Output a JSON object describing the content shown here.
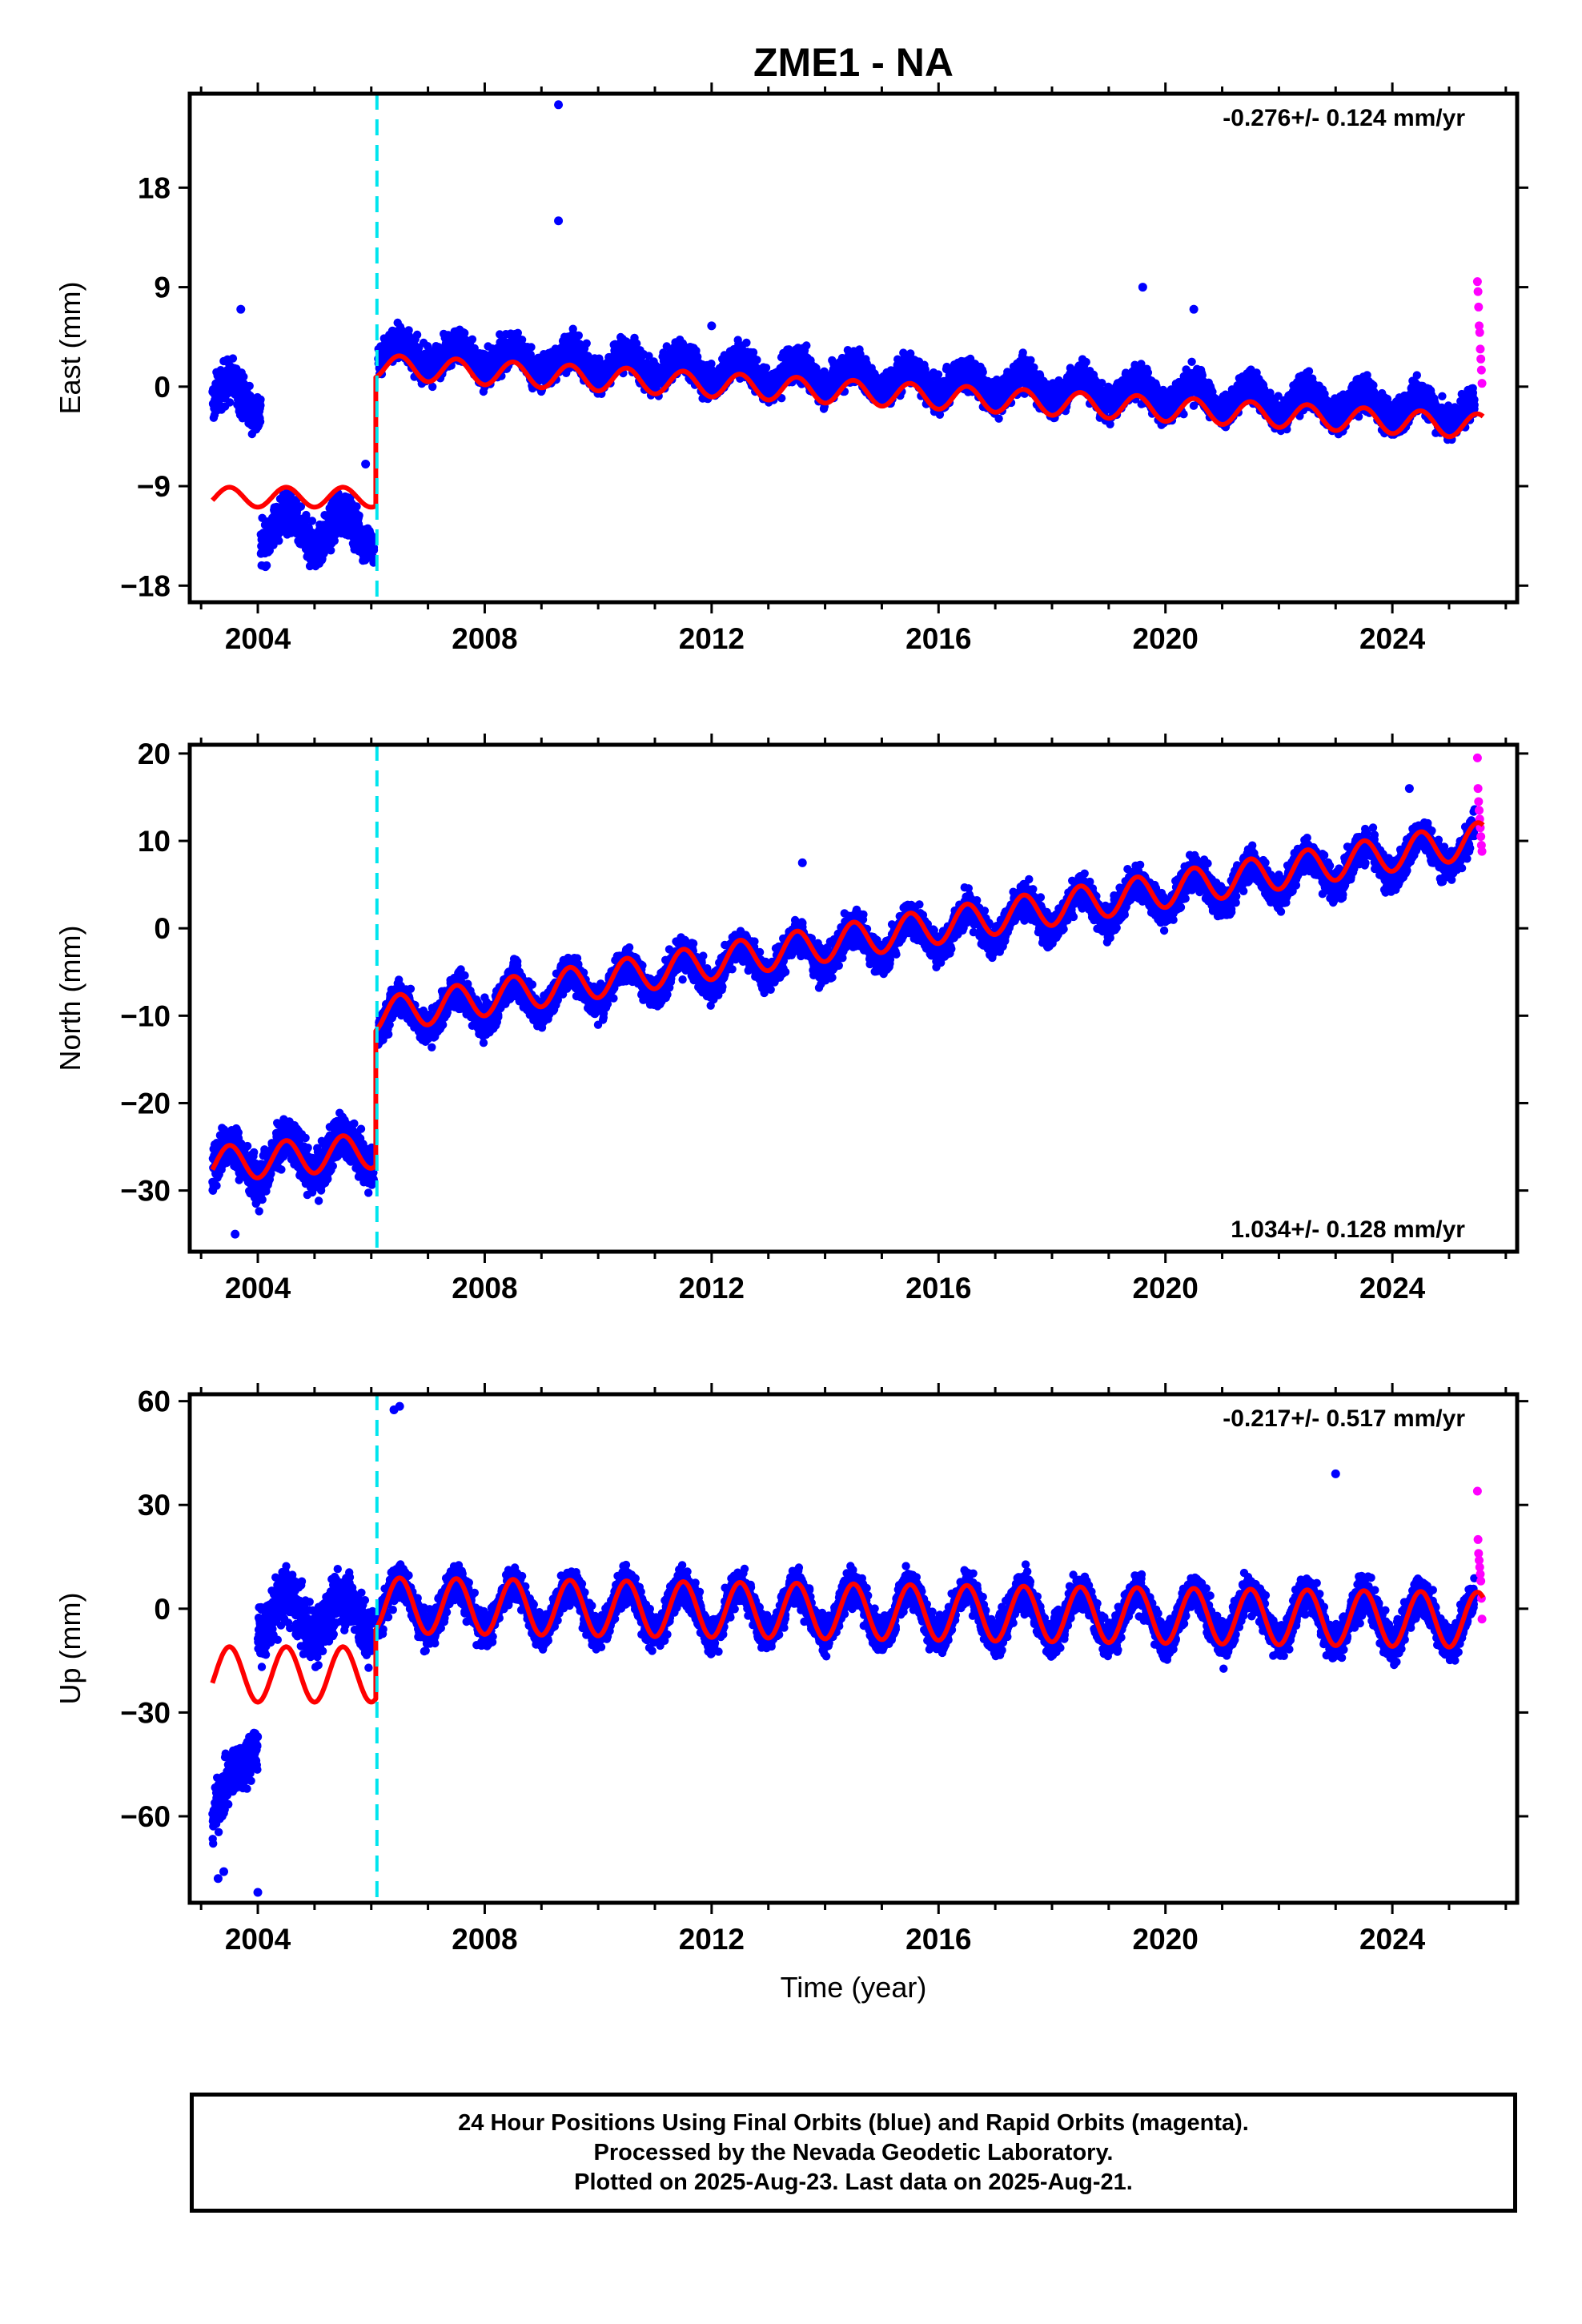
{
  "title": "ZME1 - NA",
  "xlabel": "Time (year)",
  "colors": {
    "final_orbits": "#0000ff",
    "rapid_orbits": "#ff00ff",
    "model": "#ff0000",
    "equipment_change": "#00e5ee",
    "axes": "#000000"
  },
  "caption": {
    "line1": "24 Hour Positions Using Final Orbits (blue) and Rapid Orbits (magenta).",
    "line2": "Processed by the Nevada Geodetic Laboratory.",
    "line3": "Plotted on 2025-Aug-23. Last data on 2025-Aug-21."
  },
  "chart_data": [
    {
      "type": "scatter",
      "component": "east",
      "ylabel": "East (mm)",
      "rate_label": "-0.276+/- 0.124 mm/yr",
      "rate_position": "top-right",
      "xlim": [
        2002.8,
        2026.2
      ],
      "ylim": [
        -19.5,
        26.5
      ],
      "xticks": [
        2004,
        2008,
        2012,
        2016,
        2020,
        2024
      ],
      "xtick_labels": [
        "2004",
        "2008",
        "2012",
        "2016",
        "2020",
        "2024"
      ],
      "yticks": [
        -18,
        -9,
        0,
        9,
        18
      ],
      "ytick_labels": [
        "−18",
        "−9",
        "0",
        "9",
        "18"
      ],
      "grid": false,
      "equipment_change_year": 2006.1,
      "segments": [
        {
          "start": 2003.2,
          "end": 2004.05,
          "intercept": -1.0,
          "rate": 0.0,
          "amplitude": 1.5,
          "noise": 1.6
        },
        {
          "start": 2004.05,
          "end": 2006.05,
          "intercept": -13.0,
          "rate": 0.0,
          "amplitude": 1.5,
          "noise": 1.6
        },
        {
          "start": 2006.12,
          "end": 2025.45,
          "intercept": 3.1,
          "rate": -0.276,
          "amplitude": 1.1,
          "noise": 1.3
        }
      ],
      "model_segments": [
        {
          "start": 2003.2,
          "end": 2006.08,
          "intercept": -10.0,
          "rate": 0.0,
          "amplitude": 0.9
        },
        {
          "start": 2006.08,
          "end": 2025.6,
          "intercept": 1.8,
          "rate": -0.276,
          "amplitude": 1.1
        }
      ],
      "rapid_points": {
        "x": [
          2025.5,
          2025.51,
          2025.52,
          2025.53,
          2025.54,
          2025.55,
          2025.56,
          2025.57,
          2025.58
        ],
        "y": [
          9.5,
          8.6,
          7.2,
          5.5,
          4.9,
          3.4,
          2.5,
          1.5,
          0.3
        ]
      },
      "outliers": {
        "x": [
          2009.3,
          2009.3,
          2019.6,
          2020.5,
          2012.0,
          2003.7,
          2005.9
        ],
        "y": [
          25.5,
          15.0,
          9.0,
          7.0,
          5.5,
          7.0,
          -7.0
        ]
      }
    },
    {
      "type": "scatter",
      "component": "north",
      "ylabel": "North (mm)",
      "rate_label": "1.034+/- 0.128 mm/yr",
      "rate_position": "bottom-right",
      "xlim": [
        2002.8,
        2026.2
      ],
      "ylim": [
        -37,
        21
      ],
      "xticks": [
        2004,
        2008,
        2012,
        2016,
        2020,
        2024
      ],
      "xtick_labels": [
        "2004",
        "2008",
        "2012",
        "2016",
        "2020",
        "2024"
      ],
      "yticks": [
        -30,
        -20,
        -10,
        0,
        10,
        20
      ],
      "ytick_labels": [
        "−30",
        "−20",
        "−10",
        "0",
        "10",
        "20"
      ],
      "grid": false,
      "equipment_change_year": 2006.1,
      "segments": [
        {
          "start": 2003.2,
          "end": 2006.05,
          "intercept": -27.0,
          "rate": 0.55,
          "amplitude": 2.0,
          "noise": 2.2
        },
        {
          "start": 2006.12,
          "end": 2025.45,
          "intercept": -10.5,
          "rate": 1.034,
          "amplitude": 2.0,
          "noise": 1.6
        }
      ],
      "model_segments": [
        {
          "start": 2003.2,
          "end": 2006.08,
          "intercept": -27.0,
          "rate": 0.55,
          "amplitude": 2.0
        },
        {
          "start": 2006.08,
          "end": 2025.6,
          "intercept": -10.0,
          "rate": 1.034,
          "amplitude": 2.0
        }
      ],
      "rapid_points": {
        "x": [
          2025.5,
          2025.51,
          2025.52,
          2025.53,
          2025.54,
          2025.55,
          2025.56,
          2025.57,
          2025.58
        ],
        "y": [
          19.5,
          16.0,
          14.5,
          13.5,
          12.5,
          11.5,
          10.5,
          9.5,
          8.8
        ]
      },
      "outliers": {
        "x": [
          2003.6,
          2013.6,
          2024.3
        ],
        "y": [
          -35.0,
          7.5,
          16.0
        ]
      }
    },
    {
      "type": "scatter",
      "component": "up",
      "ylabel": "Up (mm)",
      "rate_label": "-0.217+/- 0.517 mm/yr",
      "rate_position": "top-right",
      "xlim": [
        2002.8,
        2026.2
      ],
      "ylim": [
        -85,
        62
      ],
      "xticks": [
        2004,
        2008,
        2012,
        2016,
        2020,
        2024
      ],
      "xtick_labels": [
        "2004",
        "2008",
        "2012",
        "2016",
        "2020",
        "2024"
      ],
      "yticks": [
        -60,
        -30,
        0,
        30,
        60
      ],
      "ytick_labels": [
        "−60",
        "−30",
        "0",
        "30",
        "60"
      ],
      "grid": false,
      "equipment_change_year": 2006.1,
      "segments": [
        {
          "start": 2003.2,
          "end": 2004.0,
          "intercept": -60.0,
          "rate": 28.0,
          "amplitude": 2.0,
          "noise": 6.0
        },
        {
          "start": 2004.0,
          "end": 2006.05,
          "intercept": -2.0,
          "rate": 0.0,
          "amplitude": 6.0,
          "noise": 7.0
        },
        {
          "start": 2006.12,
          "end": 2025.45,
          "intercept": 1.0,
          "rate": -0.217,
          "amplitude": 7.0,
          "noise": 4.5
        }
      ],
      "model_segments": [
        {
          "start": 2003.2,
          "end": 2006.08,
          "intercept": -19.0,
          "rate": 0.0,
          "amplitude": 8.0
        },
        {
          "start": 2006.08,
          "end": 2025.6,
          "intercept": 1.0,
          "rate": -0.217,
          "amplitude": 8.0
        }
      ],
      "rapid_points": {
        "x": [
          2025.5,
          2025.51,
          2025.52,
          2025.53,
          2025.54,
          2025.55,
          2025.56,
          2025.57,
          2025.58
        ],
        "y": [
          34.0,
          20.0,
          16.0,
          14.0,
          12.0,
          10.0,
          8.0,
          3.0,
          -3.0
        ]
      },
      "outliers": {
        "x": [
          2006.4,
          2006.5,
          2023.0,
          2004.0,
          2003.3,
          2003.4
        ],
        "y": [
          57.5,
          58.5,
          39.0,
          -82.0,
          -78.0,
          -76.0
        ]
      }
    }
  ]
}
